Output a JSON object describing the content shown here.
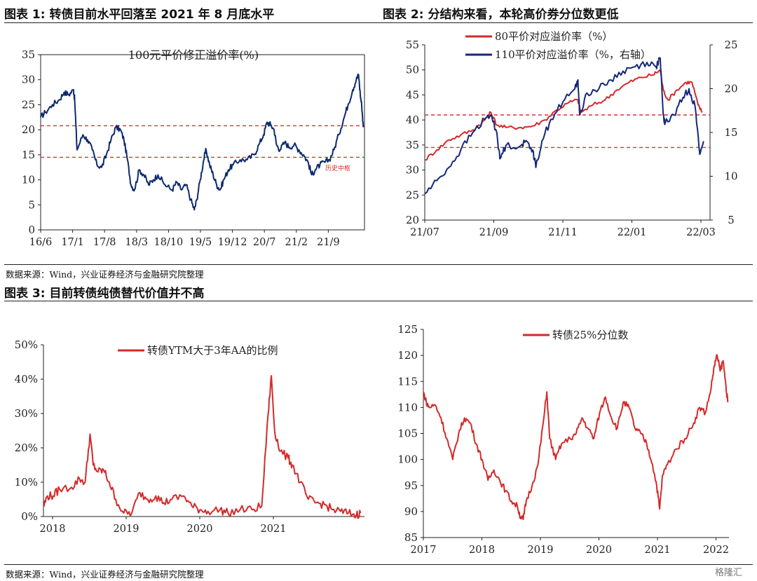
{
  "headers": {
    "fig1": "图表 1:  转债目前水平回落至 2021 年 8 月底水平",
    "fig2": "图表 2:  分结构来看，本轮高价券分位数更低",
    "fig3": "图表 3:  目前转债纯债替代价值并不高"
  },
  "sources": {
    "top": "数据来源：Wind，兴业证券经济与金融研究院整理",
    "bottom": "数据来源：Wind，兴业证券经济与金融研究院整理"
  },
  "watermark": "格隆汇",
  "chart_data": [
    {
      "id": "c1",
      "type": "line",
      "title": "100元平价修正溢价率(%)",
      "ylim": [
        0,
        35
      ],
      "yticks": [
        0,
        5,
        10,
        15,
        20,
        25,
        30,
        35
      ],
      "xticks": [
        "16/6",
        "17/1",
        "17/8",
        "18/3",
        "18/10",
        "19/5",
        "19/12",
        "20/7",
        "21/2",
        "21/9"
      ],
      "reference_lines": [
        20.8,
        14.5
      ],
      "annotation": "历史中枢",
      "series": [
        {
          "name": "100元平价修正溢价率(%)",
          "color": "#0d2a6b",
          "points": [
            [
              0,
              22.5
            ],
            [
              0.2,
              23.5
            ],
            [
              0.5,
              25
            ],
            [
              0.8,
              26
            ],
            [
              1,
              27.5
            ],
            [
              1.2,
              27
            ],
            [
              1.4,
              28
            ],
            [
              1.45,
              26
            ],
            [
              1.55,
              16
            ],
            [
              1.8,
              19
            ],
            [
              2,
              18
            ],
            [
              2.2,
              16
            ],
            [
              2.4,
              13
            ],
            [
              2.6,
              12.5
            ],
            [
              2.8,
              15
            ],
            [
              3,
              18
            ],
            [
              3.2,
              20.5
            ],
            [
              3.4,
              20
            ],
            [
              3.55,
              18
            ],
            [
              3.7,
              14
            ],
            [
              3.85,
              9
            ],
            [
              4,
              8
            ],
            [
              4.2,
              12
            ],
            [
              4.4,
              11
            ],
            [
              4.6,
              9
            ],
            [
              4.8,
              10
            ],
            [
              5,
              11
            ],
            [
              5.3,
              9
            ],
            [
              5.6,
              8
            ],
            [
              5.8,
              9.5
            ],
            [
              6,
              8
            ],
            [
              6.2,
              9
            ],
            [
              6.4,
              6
            ],
            [
              6.55,
              4
            ],
            [
              6.65,
              6
            ],
            [
              6.8,
              10
            ],
            [
              6.95,
              14
            ],
            [
              7.05,
              16
            ],
            [
              7.2,
              13
            ],
            [
              7.35,
              11
            ],
            [
              7.5,
              9
            ],
            [
              7.65,
              8
            ],
            [
              7.8,
              10
            ],
            [
              8,
              12
            ],
            [
              8.2,
              13
            ],
            [
              8.5,
              14
            ],
            [
              8.8,
              14
            ],
            [
              9.1,
              15
            ],
            [
              9.3,
              17
            ],
            [
              9.5,
              19
            ],
            [
              9.65,
              21.5
            ],
            [
              9.8,
              21
            ],
            [
              9.95,
              20
            ],
            [
              10.05,
              17
            ],
            [
              10.2,
              16
            ],
            [
              10.4,
              17.5
            ],
            [
              10.6,
              16.5
            ],
            [
              10.8,
              17
            ],
            [
              11,
              16
            ],
            [
              11.2,
              15
            ],
            [
              11.4,
              13.5
            ],
            [
              11.55,
              11
            ],
            [
              11.7,
              12
            ],
            [
              11.9,
              13
            ],
            [
              12.1,
              13.5
            ],
            [
              12.3,
              14
            ],
            [
              12.5,
              16
            ],
            [
              12.7,
              19
            ],
            [
              12.9,
              22
            ],
            [
              13.1,
              25
            ],
            [
              13.3,
              28
            ],
            [
              13.45,
              30
            ],
            [
              13.55,
              31
            ],
            [
              13.62,
              27
            ],
            [
              13.68,
              25
            ],
            [
              13.75,
              20.5
            ]
          ]
        }
      ]
    },
    {
      "id": "c2",
      "type": "line",
      "ylim": [
        20,
        55
      ],
      "yticks": [
        20,
        25,
        30,
        35,
        40,
        45,
        50,
        55
      ],
      "y2lim": [
        5,
        25
      ],
      "y2ticks": [
        5,
        10,
        15,
        20,
        25
      ],
      "xticks": [
        "21/07",
        "21/09",
        "21/11",
        "22/01",
        "22/03"
      ],
      "reference_lines": [
        41,
        34.5
      ],
      "series": [
        {
          "name": "80平价对应溢价率（%）",
          "color": "#d42a2a",
          "axis": "left",
          "points": [
            [
              0,
              32
            ],
            [
              0.2,
              34
            ],
            [
              0.4,
              36
            ],
            [
              0.6,
              37
            ],
            [
              0.8,
              38
            ],
            [
              1.0,
              40
            ],
            [
              1.1,
              41.5
            ],
            [
              1.2,
              39
            ],
            [
              1.35,
              38.5
            ],
            [
              1.6,
              38.5
            ],
            [
              1.8,
              38.8
            ],
            [
              2.0,
              40
            ],
            [
              2.2,
              42
            ],
            [
              2.4,
              43.5
            ],
            [
              2.55,
              44
            ],
            [
              2.6,
              41.5
            ],
            [
              2.8,
              43
            ],
            [
              3.0,
              44
            ],
            [
              3.2,
              46
            ],
            [
              3.4,
              47.5
            ],
            [
              3.6,
              48.5
            ],
            [
              3.8,
              49
            ],
            [
              3.92,
              50
            ],
            [
              3.97,
              46
            ],
            [
              4.05,
              44
            ],
            [
              4.2,
              46
            ],
            [
              4.35,
              47.5
            ],
            [
              4.45,
              47.5
            ],
            [
              4.55,
              43
            ],
            [
              4.62,
              41.5
            ]
          ]
        },
        {
          "name": "110平价对应溢价率（%，右轴）",
          "color": "#14287a",
          "axis": "right",
          "points": [
            [
              0,
              8
            ],
            [
              0.2,
              9.5
            ],
            [
              0.4,
              11
            ],
            [
              0.6,
              13
            ],
            [
              0.8,
              15
            ],
            [
              1.0,
              16.5
            ],
            [
              1.1,
              17
            ],
            [
              1.2,
              15
            ],
            [
              1.25,
              12
            ],
            [
              1.35,
              13.5
            ],
            [
              1.6,
              13.5
            ],
            [
              1.7,
              14
            ],
            [
              1.8,
              13
            ],
            [
              1.85,
              11
            ],
            [
              1.95,
              14
            ],
            [
              2.1,
              16.5
            ],
            [
              2.3,
              18.5
            ],
            [
              2.5,
              20
            ],
            [
              2.55,
              21
            ],
            [
              2.58,
              17
            ],
            [
              2.7,
              19.5
            ],
            [
              2.9,
              20
            ],
            [
              3.1,
              21
            ],
            [
              3.3,
              22
            ],
            [
              3.5,
              22.5
            ],
            [
              3.7,
              23
            ],
            [
              3.85,
              22.5
            ],
            [
              3.92,
              23.5
            ],
            [
              3.97,
              17
            ],
            [
              4.0,
              16
            ],
            [
              4.15,
              17
            ],
            [
              4.3,
              19
            ],
            [
              4.4,
              20
            ],
            [
              4.5,
              18
            ],
            [
              4.58,
              12.5
            ],
            [
              4.64,
              14
            ]
          ]
        }
      ]
    },
    {
      "id": "c3",
      "type": "line",
      "title": "转债YTM大于3年AA的比例",
      "ylim": [
        0,
        50
      ],
      "yticks": [
        "0%",
        "10%",
        "20%",
        "30%",
        "40%",
        "50%"
      ],
      "xticks": [
        "2018",
        "2019",
        "2020",
        "2021"
      ],
      "series": [
        {
          "name": "转债YTM大于3年AA的比例",
          "color": "#d42a2a",
          "points": [
            [
              0,
              3
            ],
            [
              0.05,
              6
            ],
            [
              0.12,
              6
            ],
            [
              0.2,
              8
            ],
            [
              0.35,
              8.5
            ],
            [
              0.45,
              11
            ],
            [
              0.52,
              10
            ],
            [
              0.58,
              24
            ],
            [
              0.62,
              15
            ],
            [
              0.68,
              13
            ],
            [
              0.75,
              13.5
            ],
            [
              0.82,
              10
            ],
            [
              0.9,
              5
            ],
            [
              1.0,
              1
            ],
            [
              1.1,
              1
            ],
            [
              1.2,
              7
            ],
            [
              1.3,
              5
            ],
            [
              1.4,
              6
            ],
            [
              1.5,
              4
            ],
            [
              1.6,
              5
            ],
            [
              1.75,
              6
            ],
            [
              1.85,
              3
            ],
            [
              1.95,
              2
            ],
            [
              2.05,
              1.5
            ],
            [
              2.2,
              2
            ],
            [
              2.3,
              1
            ],
            [
              2.45,
              2
            ],
            [
              2.6,
              2
            ],
            [
              2.72,
              3
            ],
            [
              2.8,
              30
            ],
            [
              2.84,
              41
            ],
            [
              2.88,
              25
            ],
            [
              2.95,
              19
            ],
            [
              3.05,
              17
            ],
            [
              3.1,
              15
            ],
            [
              3.2,
              10
            ],
            [
              3.3,
              5
            ],
            [
              3.4,
              4
            ],
            [
              3.5,
              3.5
            ],
            [
              3.6,
              2
            ],
            [
              3.7,
              1.5
            ],
            [
              3.8,
              1
            ],
            [
              3.9,
              0.5
            ],
            [
              3.95,
              1
            ]
          ]
        }
      ]
    },
    {
      "id": "c4",
      "type": "line",
      "title": "转债25%分位数",
      "ylim": [
        85,
        125
      ],
      "yticks": [
        85,
        90,
        95,
        100,
        105,
        110,
        115,
        120,
        125
      ],
      "xticks": [
        "2017",
        "2018",
        "2019",
        "2020",
        "2021",
        "2022"
      ],
      "series": [
        {
          "name": "转债25%分位数",
          "color": "#d42a2a",
          "points": [
            [
              0,
              113
            ],
            [
              0.05,
              111
            ],
            [
              0.1,
              110
            ],
            [
              0.2,
              110.5
            ],
            [
              0.3,
              108
            ],
            [
              0.4,
              104
            ],
            [
              0.5,
              100
            ],
            [
              0.6,
              105
            ],
            [
              0.7,
              108
            ],
            [
              0.8,
              107
            ],
            [
              0.9,
              103
            ],
            [
              1.0,
              100
            ],
            [
              1.1,
              96
            ],
            [
              1.2,
              98
            ],
            [
              1.3,
              96
            ],
            [
              1.4,
              94
            ],
            [
              1.5,
              92
            ],
            [
              1.6,
              91
            ],
            [
              1.65,
              89
            ],
            [
              1.7,
              88.5
            ],
            [
              1.75,
              92
            ],
            [
              1.85,
              95
            ],
            [
              1.95,
              99
            ],
            [
              2.05,
              108
            ],
            [
              2.1,
              113
            ],
            [
              2.15,
              104
            ],
            [
              2.25,
              100
            ],
            [
              2.35,
              103
            ],
            [
              2.5,
              104
            ],
            [
              2.6,
              105
            ],
            [
              2.7,
              108
            ],
            [
              2.8,
              106
            ],
            [
              2.9,
              104
            ],
            [
              3.0,
              109
            ],
            [
              3.1,
              112
            ],
            [
              3.2,
              108
            ],
            [
              3.3,
              106
            ],
            [
              3.4,
              111
            ],
            [
              3.5,
              110
            ],
            [
              3.6,
              106
            ],
            [
              3.7,
              105
            ],
            [
              3.8,
              103
            ],
            [
              3.9,
              99
            ],
            [
              3.97,
              95
            ],
            [
              4.02,
              90.5
            ],
            [
              4.07,
              97
            ],
            [
              4.15,
              99
            ],
            [
              4.3,
              102
            ],
            [
              4.45,
              104
            ],
            [
              4.6,
              107
            ],
            [
              4.7,
              110
            ],
            [
              4.8,
              109
            ],
            [
              4.9,
              114
            ],
            [
              4.95,
              118
            ],
            [
              5.0,
              120
            ],
            [
              5.05,
              117
            ],
            [
              5.1,
              119
            ],
            [
              5.15,
              114
            ],
            [
              5.18,
              111
            ]
          ]
        }
      ]
    }
  ]
}
